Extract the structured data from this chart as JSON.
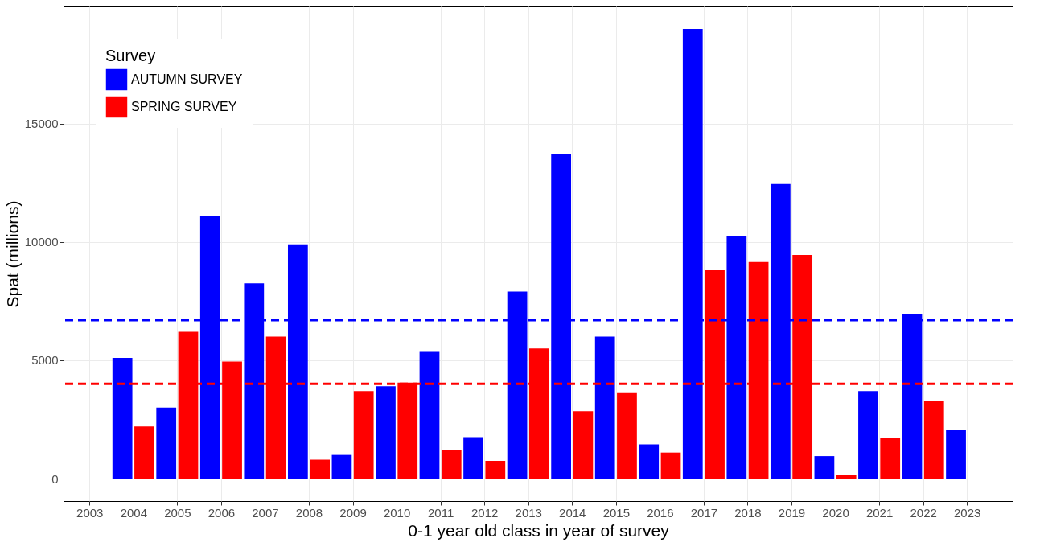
{
  "chart_data": {
    "type": "bar",
    "xlabel": "0-1 year old class in year of survey",
    "ylabel": "Spat (millions)",
    "legend_title": "Survey",
    "legend": "top left",
    "grid": true,
    "series": [
      {
        "name": "AUTUMN SURVEY",
        "color": "#0000ff",
        "x": [
          2003.75,
          2004.75,
          2005.75,
          2006.75,
          2007.75,
          2008.75,
          2009.75,
          2010.75,
          2011.75,
          2012.75,
          2013.75,
          2014.75,
          2015.75,
          2016.75,
          2017.75,
          2018.75,
          2019.75,
          2020.75,
          2021.75,
          2022.75
        ],
        "values": [
          5100,
          3000,
          11100,
          8250,
          9900,
          1000,
          3900,
          5350,
          1750,
          7900,
          13700,
          6000,
          1450,
          19000,
          10250,
          12450,
          950,
          3700,
          6950,
          2050
        ]
      },
      {
        "name": "SPRING SURVEY",
        "color": "#ff0000",
        "x": [
          2004.25,
          2005.25,
          2006.25,
          2007.25,
          2008.25,
          2009.25,
          2010.25,
          2011.25,
          2012.25,
          2013.25,
          2014.25,
          2015.25,
          2016.25,
          2017.25,
          2018.25,
          2019.25,
          2020.25,
          2021.25,
          2022.25
        ],
        "values": [
          2200,
          6200,
          4950,
          6000,
          800,
          3700,
          4050,
          1200,
          750,
          5500,
          2850,
          3650,
          1100,
          8800,
          9150,
          9450,
          150,
          1700,
          3300
        ]
      }
    ],
    "ref_lines": [
      {
        "axis": "y",
        "value": 6700,
        "color": "#0000ff",
        "line_style": "dashed"
      },
      {
        "axis": "y",
        "value": 4000,
        "color": "#ff0000",
        "line_style": "dashed"
      }
    ],
    "xlim": [
      2002.5,
      2023.95
    ],
    "xticks": [
      2003,
      2004,
      2005,
      2006,
      2007,
      2008,
      2009,
      2010,
      2011,
      2012,
      2013,
      2014,
      2015,
      2016,
      2017,
      2018,
      2019,
      2020,
      2021,
      2022,
      2023
    ],
    "ylim": [
      -950,
      19950
    ],
    "yticks": [
      0,
      5000,
      10000,
      15000
    ]
  }
}
